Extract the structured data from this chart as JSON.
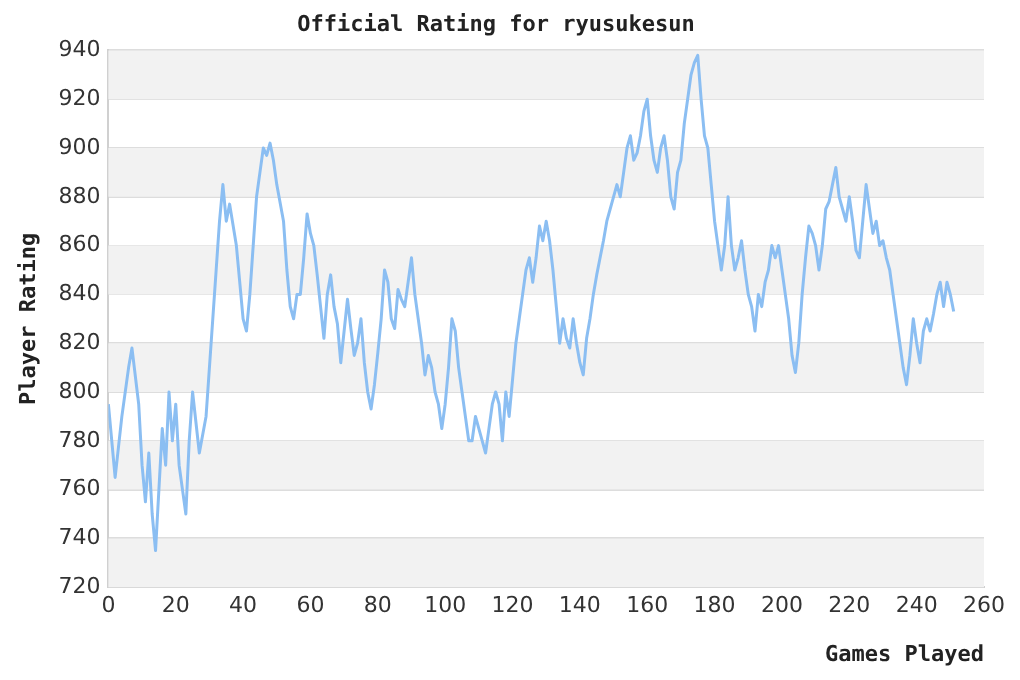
{
  "chart_data": {
    "type": "line",
    "title": "Official Rating for ryusukesun",
    "xlabel": "Games Played",
    "ylabel": "Player Rating",
    "x": [
      0,
      2,
      4,
      6,
      7,
      9,
      10,
      11,
      12,
      13,
      14,
      15,
      16,
      17,
      18,
      19,
      20,
      21,
      22,
      23,
      24,
      25,
      27,
      29,
      30,
      31,
      32,
      33,
      34,
      35,
      36,
      38,
      39,
      40,
      41,
      42,
      43,
      44,
      45,
      46,
      47,
      48,
      49,
      50,
      52,
      53,
      54,
      55,
      56,
      57,
      58,
      59,
      60,
      61,
      62,
      63,
      64,
      65,
      66,
      67,
      68,
      69,
      70,
      71,
      72,
      73,
      74,
      75,
      76,
      77,
      78,
      79,
      80,
      81,
      82,
      83,
      84,
      85,
      86,
      87,
      88,
      89,
      90,
      91,
      92,
      93,
      94,
      95,
      96,
      97,
      98,
      99,
      100,
      101,
      102,
      103,
      104,
      105,
      106,
      107,
      108,
      109,
      110,
      111,
      112,
      113,
      114,
      115,
      116,
      117,
      118,
      119,
      120,
      121,
      122,
      123,
      124,
      125,
      126,
      127,
      128,
      129,
      130,
      131,
      132,
      133,
      134,
      135,
      136,
      137,
      138,
      139,
      140,
      141,
      142,
      143,
      144,
      145,
      146,
      147,
      148,
      149,
      150,
      151,
      152,
      153,
      154,
      155,
      156,
      157,
      158,
      159,
      160,
      161,
      162,
      163,
      164,
      165,
      166,
      167,
      168,
      169,
      170,
      171,
      172,
      173,
      174,
      175,
      176,
      177,
      178,
      179,
      180,
      181,
      182,
      183,
      184,
      185,
      186,
      187,
      188,
      189,
      190,
      191,
      192,
      193,
      194,
      195,
      196,
      197,
      198,
      199,
      200,
      201,
      202,
      203,
      204,
      205,
      206,
      207,
      208,
      209,
      210,
      211,
      212,
      213,
      214,
      215,
      216,
      217,
      218,
      219,
      220,
      221,
      222,
      223,
      224,
      225,
      226,
      227,
      228,
      229,
      230,
      231,
      232,
      233,
      234,
      235,
      236,
      237,
      238,
      239,
      240,
      241,
      242,
      243,
      244,
      245,
      246,
      247,
      248,
      249,
      250,
      251
    ],
    "series": [
      {
        "color": "#8bbef2",
        "values": [
          795,
          765,
          790,
          810,
          818,
          795,
          770,
          755,
          775,
          750,
          735,
          760,
          785,
          770,
          800,
          780,
          795,
          770,
          760,
          750,
          780,
          800,
          775,
          790,
          810,
          830,
          850,
          870,
          885,
          870,
          877,
          860,
          845,
          830,
          825,
          840,
          860,
          880,
          890,
          900,
          897,
          902,
          895,
          885,
          870,
          850,
          835,
          830,
          840,
          840,
          855,
          873,
          865,
          860,
          848,
          835,
          822,
          840,
          848,
          835,
          828,
          812,
          825,
          838,
          826,
          815,
          820,
          830,
          812,
          800,
          793,
          803,
          816,
          830,
          850,
          845,
          830,
          826,
          842,
          838,
          835,
          845,
          855,
          840,
          830,
          820,
          807,
          815,
          810,
          800,
          795,
          785,
          795,
          810,
          830,
          825,
          810,
          800,
          790,
          780,
          780,
          790,
          785,
          780,
          775,
          785,
          795,
          800,
          795,
          780,
          800,
          790,
          805,
          820,
          830,
          840,
          850,
          855,
          845,
          855,
          868,
          862,
          870,
          862,
          850,
          835,
          820,
          830,
          822,
          818,
          830,
          820,
          812,
          807,
          822,
          830,
          840,
          848,
          855,
          862,
          870,
          875,
          880,
          885,
          880,
          890,
          900,
          905,
          895,
          898,
          905,
          915,
          920,
          905,
          895,
          890,
          900,
          905,
          895,
          880,
          875,
          890,
          895,
          910,
          920,
          930,
          935,
          938,
          920,
          905,
          900,
          885,
          870,
          860,
          850,
          860,
          880,
          860,
          850,
          855,
          862,
          850,
          840,
          835,
          825,
          840,
          835,
          845,
          850,
          860,
          855,
          860,
          850,
          840,
          830,
          815,
          808,
          820,
          840,
          855,
          868,
          865,
          860,
          850,
          860,
          875,
          878,
          885,
          892,
          880,
          875,
          870,
          880,
          870,
          858,
          855,
          870,
          885,
          875,
          865,
          870,
          860,
          862,
          855,
          850,
          840,
          830,
          820,
          810,
          803,
          815,
          830,
          820,
          812,
          825,
          830,
          825,
          832,
          840,
          845,
          835,
          845,
          840,
          833
        ]
      }
    ],
    "xlim": [
      0,
      260
    ],
    "xticks": [
      0,
      20,
      40,
      60,
      80,
      100,
      120,
      140,
      160,
      180,
      200,
      220,
      240,
      260
    ],
    "ylim": [
      720,
      940
    ],
    "yticks": [
      720,
      740,
      760,
      780,
      800,
      820,
      840,
      860,
      880,
      900,
      920,
      940
    ],
    "grid": "y",
    "legend": false,
    "marker": "none",
    "line_style": "solid"
  }
}
